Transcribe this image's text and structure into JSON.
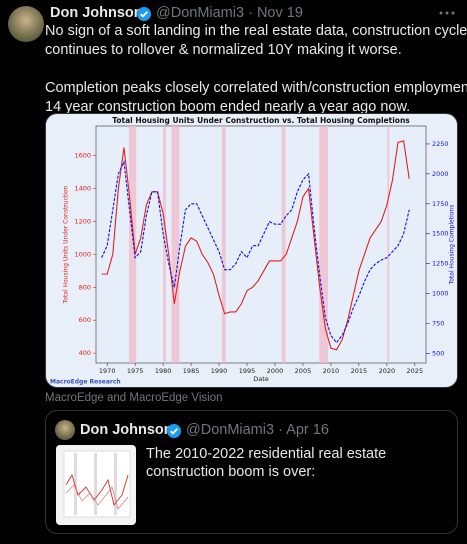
{
  "tweet": {
    "author_name": "Don Johnson",
    "handle": "@DonMiami3",
    "date": "Nov 19",
    "text_lines": [
      "No sign of a soft landing in the real estate data, construction cycle",
      "continues to rollover & normalized 10Y making it worse.",
      "Completion peaks closely correlated with/construction employment - the",
      "14 year construction boom ended nearly a year ago now."
    ],
    "media_caption": "MacroEdge and MacroEdge Vision",
    "quoted": {
      "author_name": "Don Johnson",
      "handle": "@DonMiami3",
      "date": "Apr 16",
      "text": "The 2010-2022 residential real estate construction boom is over:"
    }
  },
  "chart_data": {
    "type": "line",
    "title": "Total Housing Units Under Construction vs. Total Housing Completions",
    "xlabel": "Date",
    "ylabel": "Total Housing Units Under Construction",
    "y2label": "Total Housing Completions",
    "watermark": "MacroEdge Research",
    "x": [
      1969,
      1970,
      1971,
      1972,
      1973,
      1974,
      1975,
      1976,
      1977,
      1978,
      1979,
      1980,
      1981,
      1982,
      1983,
      1984,
      1985,
      1986,
      1987,
      1988,
      1989,
      1990,
      1991,
      1992,
      1993,
      1994,
      1995,
      1996,
      1997,
      1998,
      1999,
      2000,
      2001,
      2002,
      2003,
      2004,
      2005,
      2006,
      2007,
      2008,
      2009,
      2010,
      2011,
      2012,
      2013,
      2014,
      2015,
      2016,
      2017,
      2018,
      2019,
      2020,
      2021,
      2022,
      2023,
      2024
    ],
    "series": [
      {
        "color": "#e02020",
        "axis": "y",
        "dashed": false,
        "values": [
          880,
          880,
          1000,
          1400,
          1650,
          1350,
          1000,
          1100,
          1300,
          1380,
          1380,
          1250,
          1000,
          700,
          900,
          1050,
          1100,
          1080,
          1000,
          950,
          880,
          750,
          640,
          650,
          650,
          700,
          780,
          800,
          840,
          900,
          960,
          960,
          960,
          1000,
          1100,
          1200,
          1350,
          1400,
          1100,
          800,
          550,
          430,
          420,
          480,
          600,
          750,
          900,
          1000,
          1100,
          1150,
          1200,
          1300,
          1450,
          1680,
          1690,
          1460
        ]
      },
      {
        "color": "#1010e0",
        "axis": "y2",
        "dashed": true,
        "values": [
          1300,
          1400,
          1700,
          2000,
          2100,
          1700,
          1300,
          1350,
          1650,
          1850,
          1850,
          1500,
          1250,
          1050,
          1400,
          1700,
          1750,
          1750,
          1650,
          1550,
          1450,
          1350,
          1200,
          1200,
          1250,
          1350,
          1300,
          1400,
          1400,
          1500,
          1600,
          1580,
          1580,
          1650,
          1700,
          1850,
          1950,
          2000,
          1550,
          1150,
          800,
          650,
          590,
          650,
          750,
          880,
          980,
          1100,
          1200,
          1250,
          1280,
          1300,
          1350,
          1400,
          1500,
          1700
        ]
      }
    ],
    "shaded_periods": [
      [
        1973.9,
        1975.2
      ],
      [
        1980.0,
        1980.5
      ],
      [
        1981.5,
        1982.9
      ],
      [
        1990.5,
        1991.2
      ],
      [
        2001.2,
        2001.9
      ],
      [
        2007.9,
        2009.5
      ],
      [
        2020.1,
        2020.4
      ]
    ],
    "xlim": [
      1968,
      2027
    ],
    "xticks": [
      1970,
      1975,
      1980,
      1985,
      1990,
      1995,
      2000,
      2005,
      2010,
      2015,
      2020,
      2025
    ],
    "ylim": [
      340,
      1780
    ],
    "yticks": [
      400,
      600,
      800,
      1000,
      1200,
      1400,
      1600
    ],
    "y2lim": [
      420,
      2400
    ],
    "y2ticks": [
      500,
      750,
      1000,
      1250,
      1500,
      1750,
      2000,
      2250
    ]
  }
}
